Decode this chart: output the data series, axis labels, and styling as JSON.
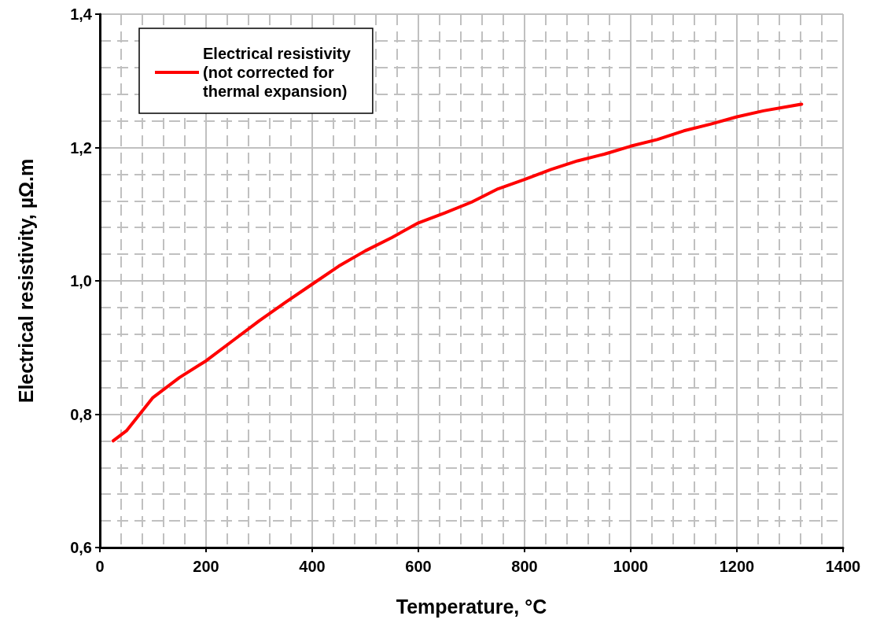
{
  "chart_data": {
    "type": "line",
    "xlabel": "Temperature, °C",
    "ylabel": "Electrical resistivity, µΩ.m",
    "xlim": [
      0,
      1400
    ],
    "xticks": [
      0,
      200,
      400,
      600,
      800,
      1000,
      1200,
      1400
    ],
    "ylim": [
      0.6,
      1.4
    ],
    "yticks": [
      {
        "value": 0.6,
        "label": "0,6"
      },
      {
        "value": 0.8,
        "label": "0,8"
      },
      {
        "value": 1.0,
        "label": "1,0"
      },
      {
        "value": 1.2,
        "label": "1,2"
      },
      {
        "value": 1.4,
        "label": "1,4"
      }
    ],
    "grid": true,
    "legend": "top left",
    "marker": "none",
    "line_style": "solid",
    "series": [
      {
        "name": "Electrical resistivity\n(not corrected for\nthermal expansion)",
        "color": "#ff0000",
        "x": [
          25,
          50,
          100,
          150,
          200,
          250,
          300,
          350,
          400,
          450,
          500,
          550,
          600,
          650,
          700,
          750,
          800,
          850,
          900,
          950,
          1000,
          1050,
          1100,
          1150,
          1200,
          1250,
          1300,
          1322
        ],
        "values": [
          0.76,
          0.775,
          0.825,
          0.855,
          0.88,
          0.91,
          0.94,
          0.968,
          0.995,
          1.022,
          1.045,
          1.065,
          1.087,
          1.102,
          1.118,
          1.138,
          1.152,
          1.167,
          1.18,
          1.19,
          1.202,
          1.212,
          1.225,
          1.235,
          1.246,
          1.255,
          1.262,
          1.265
        ]
      }
    ]
  }
}
